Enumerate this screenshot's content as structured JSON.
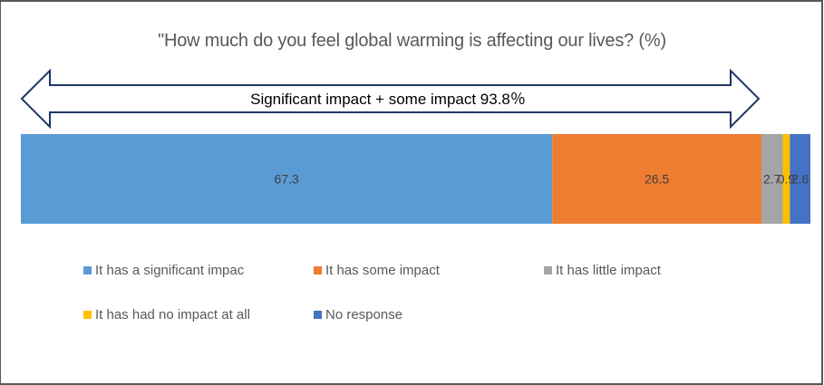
{
  "chart_data": {
    "type": "bar",
    "orientation": "horizontal-stacked-100",
    "title": "\"How much do you feel global warming is affecting our lives? (%)",
    "annotation": "Significant impact + some impact 93.8％",
    "categories": [
      ""
    ],
    "series": [
      {
        "name": "It has a significant impac",
        "values": [
          67.3
        ],
        "label": "67.3",
        "color": "#5B9BD5"
      },
      {
        "name": "It has some impact",
        "values": [
          26.5
        ],
        "label": "26.5",
        "color": "#ED7D31"
      },
      {
        "name": "It has little impact",
        "values": [
          2.7
        ],
        "label": "2.7",
        "color": "#A5A5A5"
      },
      {
        "name": "It has had no impact at all",
        "values": [
          0.9
        ],
        "label": "0.9",
        "color": "#FFC000"
      },
      {
        "name": "No response",
        "values": [
          2.6
        ],
        "label": "2.6",
        "color": "#4472C4"
      }
    ],
    "xlim": [
      0,
      100
    ],
    "legend_position": "bottom",
    "grid": false
  }
}
